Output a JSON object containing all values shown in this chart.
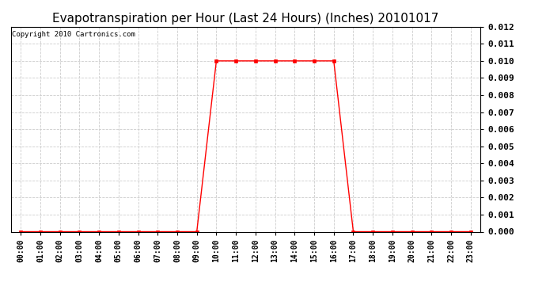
{
  "title": "Evapotranspiration per Hour (Last 24 Hours) (Inches) 20101017",
  "copyright": "Copyright 2010 Cartronics.com",
  "hours": [
    "00:00",
    "01:00",
    "02:00",
    "03:00",
    "04:00",
    "05:00",
    "06:00",
    "07:00",
    "08:00",
    "09:00",
    "10:00",
    "11:00",
    "12:00",
    "13:00",
    "14:00",
    "15:00",
    "16:00",
    "17:00",
    "18:00",
    "19:00",
    "20:00",
    "21:00",
    "22:00",
    "23:00"
  ],
  "values": [
    0.0,
    0.0,
    0.0,
    0.0,
    0.0,
    0.0,
    0.0,
    0.0,
    0.0,
    0.0,
    0.01,
    0.01,
    0.01,
    0.01,
    0.01,
    0.01,
    0.01,
    0.0,
    0.0,
    0.0,
    0.0,
    0.0,
    0.0,
    0.0
  ],
  "ylim": [
    0.0,
    0.012
  ],
  "yticks": [
    0.0,
    0.001,
    0.002,
    0.003,
    0.004,
    0.005,
    0.006,
    0.007,
    0.008,
    0.009,
    0.01,
    0.011,
    0.012
  ],
  "line_color": "red",
  "marker": "s",
  "marker_size": 2.5,
  "grid_color": "#cccccc",
  "background_color": "#ffffff",
  "title_fontsize": 11,
  "copyright_fontsize": 6.5,
  "tick_fontsize": 7,
  "ytick_fontsize": 8,
  "ytick_fontweight": "bold"
}
